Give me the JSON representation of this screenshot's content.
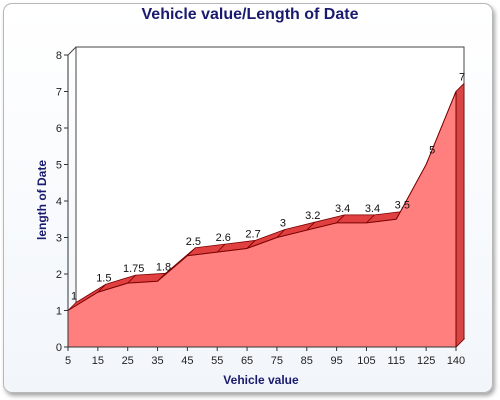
{
  "chart_data": {
    "type": "area",
    "title": "Vehicle value/Length of Date",
    "xlabel": "Vehicle value",
    "ylabel": "length of Date",
    "categories": [
      "5",
      "15",
      "25",
      "35",
      "45",
      "55",
      "65",
      "75",
      "85",
      "95",
      "105",
      "115",
      "125",
      "140"
    ],
    "series": [
      {
        "values": [
          1,
          1.5,
          1.75,
          1.8,
          2.5,
          2.6,
          2.7,
          3,
          3.2,
          3.4,
          3.4,
          3.5,
          5,
          7
        ]
      }
    ],
    "data_labels": [
      "1",
      "1.5",
      "1.75",
      "1.8",
      "2.5",
      "2.6",
      "2.7",
      "3",
      "3.2",
      "3.4",
      "3.4",
      "3.5",
      "5",
      "7"
    ],
    "ylim": [
      0,
      8
    ],
    "yticks": [
      "0",
      "1",
      "2",
      "3",
      "4",
      "5",
      "6",
      "7",
      "8"
    ],
    "grid": false,
    "legend": "none",
    "colors": {
      "fill": "#ff7f7f",
      "top": "#e04040",
      "edge": "#7a0000",
      "title": "#1a1a6e"
    }
  }
}
